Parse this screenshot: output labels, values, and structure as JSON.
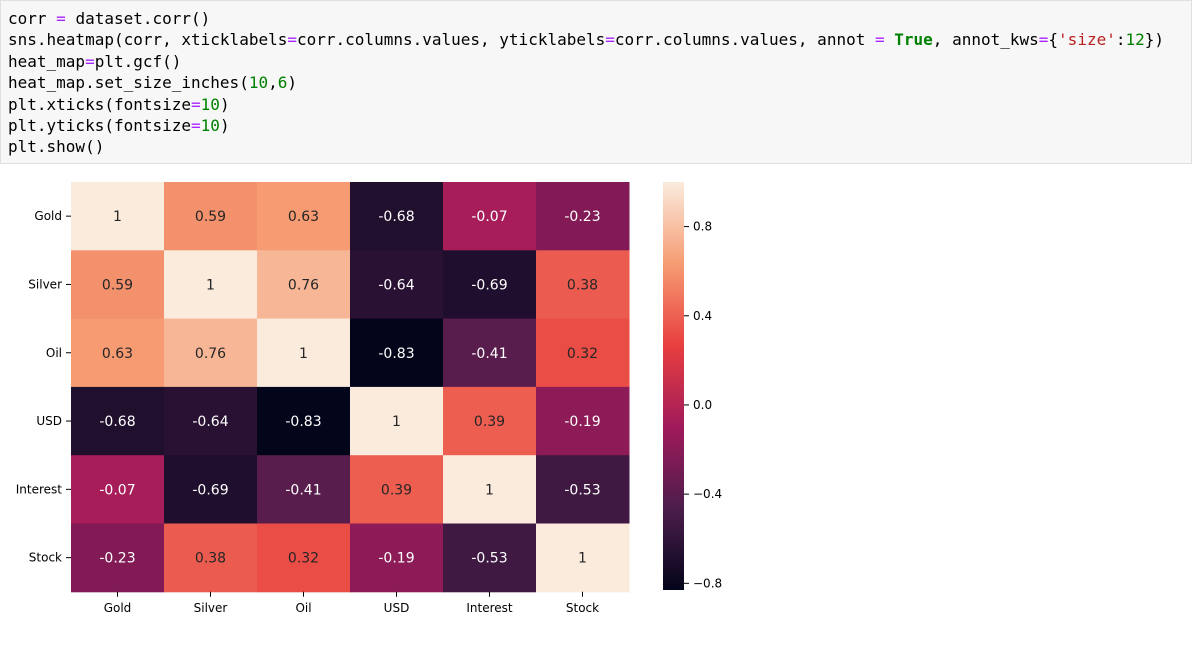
{
  "code_cell": {
    "lines": [
      [
        {
          "t": "corr "
        },
        {
          "t": "=",
          "c": "op"
        },
        {
          "t": " dataset.corr()"
        }
      ],
      [
        {
          "t": "sns.heatmap(corr, xticklabels"
        },
        {
          "t": "=",
          "c": "op"
        },
        {
          "t": "corr.columns.values, yticklabels"
        },
        {
          "t": "=",
          "c": "op"
        },
        {
          "t": "corr.columns.values, annot "
        },
        {
          "t": "=",
          "c": "op"
        },
        {
          "t": " "
        },
        {
          "t": "True",
          "c": "kw"
        },
        {
          "t": ", annot_kws"
        },
        {
          "t": "=",
          "c": "op"
        },
        {
          "t": "{"
        },
        {
          "t": "'size'",
          "c": "str"
        },
        {
          "t": ":"
        },
        {
          "t": "12",
          "c": "num"
        },
        {
          "t": "})"
        }
      ],
      [
        {
          "t": "heat_map"
        },
        {
          "t": "=",
          "c": "op"
        },
        {
          "t": "plt.gcf()"
        }
      ],
      [
        {
          "t": "heat_map.set_size_inches("
        },
        {
          "t": "10",
          "c": "num"
        },
        {
          "t": ","
        },
        {
          "t": "6",
          "c": "num"
        },
        {
          "t": ")"
        }
      ],
      [
        {
          "t": "plt.xticks(fontsize"
        },
        {
          "t": "=",
          "c": "op"
        },
        {
          "t": "10",
          "c": "num"
        },
        {
          "t": ")"
        }
      ],
      [
        {
          "t": "plt.yticks(fontsize"
        },
        {
          "t": "=",
          "c": "op"
        },
        {
          "t": "10",
          "c": "num"
        },
        {
          "t": ")"
        }
      ],
      [
        {
          "t": "plt.show()"
        }
      ]
    ]
  },
  "chart_data": {
    "type": "heatmap",
    "title": "",
    "xlabel": "",
    "ylabel": "",
    "categories": [
      "Gold",
      "Silver",
      "Oil",
      "USD",
      "Interest",
      "Stock"
    ],
    "row_labels": [
      "Gold",
      "Silver",
      "Oil",
      "USD",
      "Interest",
      "Stock"
    ],
    "values": [
      [
        1,
        0.59,
        0.63,
        -0.68,
        -0.07,
        -0.23
      ],
      [
        0.59,
        1,
        0.76,
        -0.64,
        -0.69,
        0.38
      ],
      [
        0.63,
        0.76,
        1,
        -0.83,
        -0.41,
        0.32
      ],
      [
        -0.68,
        -0.64,
        -0.83,
        1,
        0.39,
        -0.19
      ],
      [
        -0.07,
        -0.69,
        -0.41,
        0.39,
        1,
        -0.53
      ],
      [
        -0.23,
        0.38,
        0.32,
        -0.19,
        -0.53,
        1
      ]
    ],
    "annotations": [
      [
        "1",
        "0.59",
        "0.63",
        "-0.68",
        "-0.07",
        "-0.23"
      ],
      [
        "0.59",
        "1",
        "0.76",
        "-0.64",
        "-0.69",
        "0.38"
      ],
      [
        "0.63",
        "0.76",
        "1",
        "-0.83",
        "-0.41",
        "0.32"
      ],
      [
        "-0.68",
        "-0.64",
        "-0.83",
        "1",
        "0.39",
        "-0.19"
      ],
      [
        "-0.07",
        "-0.69",
        "-0.41",
        "0.39",
        "1",
        "-0.53"
      ],
      [
        "-0.23",
        "0.38",
        "0.32",
        "-0.19",
        "-0.53",
        "1"
      ]
    ],
    "colormap": "rocket",
    "colorbar": {
      "range": [
        -0.83,
        1
      ],
      "ticks": [
        0.8,
        0.4,
        0.0,
        -0.4,
        -0.8
      ],
      "tick_labels": [
        "0.8",
        "0.4",
        "0.0",
        "−0.4",
        "−0.8"
      ]
    }
  },
  "colors": {
    "page_background": "#ffffff",
    "code_background": "#f7f7f7",
    "keyword": "#008000",
    "string": "#ba2121",
    "number": "#008000",
    "operator": "#aa22ff",
    "axis_text": "#000000",
    "annot_light": "#ffffff",
    "annot_dark": "#262626",
    "colormap_stops": [
      "#03051a",
      "#4c1d4b",
      "#a11a5b",
      "#e83f3f",
      "#f69c73",
      "#faebdd"
    ]
  }
}
